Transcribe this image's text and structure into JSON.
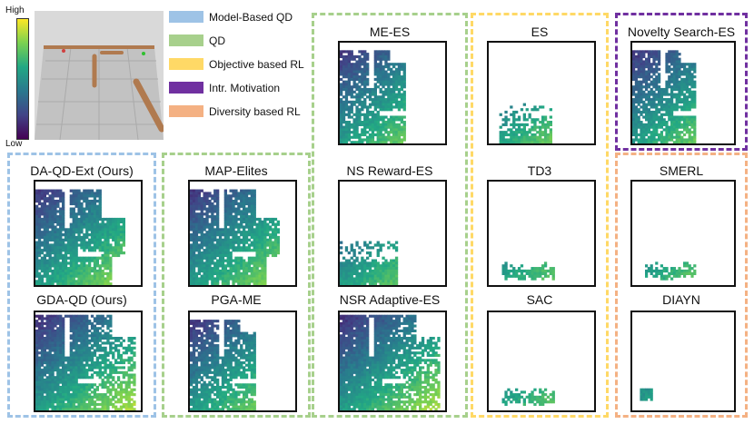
{
  "colorbar": {
    "high_label": "High",
    "low_label": "Low"
  },
  "legend": [
    {
      "label": "Model-Based QD",
      "color": "#9ec3e6"
    },
    {
      "label": "QD",
      "color": "#a7d08c"
    },
    {
      "label": "Objective based RL",
      "color": "#ffd966"
    },
    {
      "label": "Intr. Motivation",
      "color": "#7030a0"
    },
    {
      "label": "Diversity based RL",
      "color": "#f4b183"
    }
  ],
  "panels": [
    {
      "title": "DA-QD-Ext (Ours)",
      "group": "Model-Based QD",
      "pattern": "wide"
    },
    {
      "title": "GDA-QD (Ours)",
      "group": "Model-Based QD",
      "pattern": "full"
    },
    {
      "title": "MAP-Elites",
      "group": "QD",
      "pattern": "wide"
    },
    {
      "title": "PGA-ME",
      "group": "QD",
      "pattern": "medium"
    },
    {
      "title": "ME-ES",
      "group": "QD",
      "pattern": "medium"
    },
    {
      "title": "NS Reward-ES",
      "group": "QD",
      "pattern": "lower"
    },
    {
      "title": "NSR Adaptive-ES",
      "group": "QD",
      "pattern": "full"
    },
    {
      "title": "ES",
      "group": "Objective based RL",
      "pattern": "corner"
    },
    {
      "title": "TD3",
      "group": "Objective based RL",
      "pattern": "streak"
    },
    {
      "title": "SAC",
      "group": "Objective based RL",
      "pattern": "streak"
    },
    {
      "title": "Novelty Search-ES",
      "group": "Intr. Motivation",
      "pattern": "medium"
    },
    {
      "title": "SMERL",
      "group": "Diversity based RL",
      "pattern": "streak"
    },
    {
      "title": "DIAYN",
      "group": "Diversity based RL",
      "pattern": "blob"
    }
  ]
}
